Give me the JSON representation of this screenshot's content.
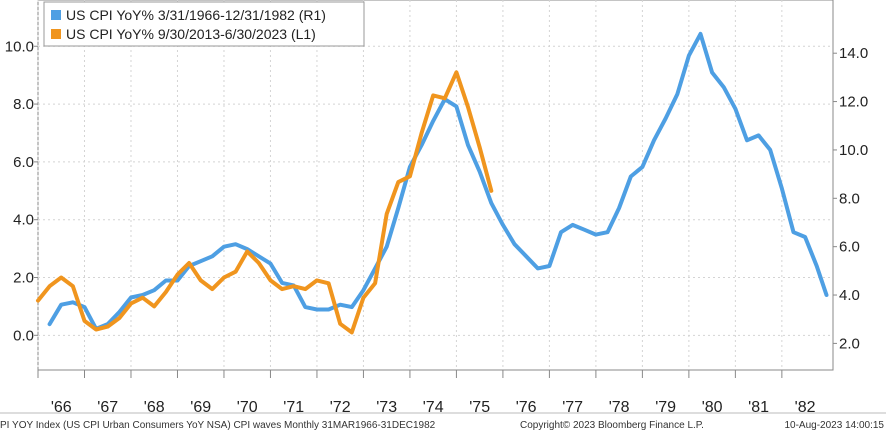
{
  "footer": {
    "left": "PI YOY Index (US CPI Urban Consumers YoY NSA) CPI waves  Monthly 31MAR1966-31DEC1982",
    "middle": "Copyright© 2023 Bloomberg Finance L.P.",
    "right": "10-Aug-2023 14:00:15"
  },
  "chart_data": {
    "type": "line",
    "title": "",
    "xlabel": "",
    "left_axis": {
      "label": "L1",
      "ylim": [
        -1.2,
        11.6
      ],
      "ticks": [
        "0.0",
        "2.0",
        "4.0",
        "6.0",
        "8.0",
        "10.0"
      ]
    },
    "right_axis": {
      "label": "R1",
      "ylim": [
        0.9,
        16.2
      ],
      "ticks": [
        "2.0",
        "4.0",
        "6.0",
        "8.0",
        "10.0",
        "12.0",
        "14.0"
      ]
    },
    "x_axis": {
      "range": [
        1966.0,
        1983.1
      ],
      "tick_labels": [
        "'66",
        "'67",
        "'68",
        "'69",
        "'70",
        "'71",
        "'72",
        "'73",
        "'74",
        "'75",
        "'76",
        "'77",
        "'78",
        "'79",
        "'80",
        "'81",
        "'82"
      ]
    },
    "grid": true,
    "legend": "top-left",
    "series": [
      {
        "name": "US CPI YoY% 3/31/1966-12/31/1982 (R1)",
        "axis": "right",
        "color": "#4e9fe3",
        "x": [
          1966.25,
          1966.5,
          1966.75,
          1967.0,
          1967.25,
          1967.5,
          1967.75,
          1968.0,
          1968.25,
          1968.5,
          1968.75,
          1969.0,
          1969.25,
          1969.5,
          1969.75,
          1970.0,
          1970.25,
          1970.5,
          1970.75,
          1971.0,
          1971.25,
          1971.5,
          1971.75,
          1972.0,
          1972.25,
          1972.5,
          1972.75,
          1973.0,
          1973.25,
          1973.5,
          1973.75,
          1974.0,
          1974.25,
          1974.5,
          1974.75,
          1975.0,
          1975.25,
          1975.5,
          1975.75,
          1976.0,
          1976.25,
          1976.5,
          1976.75,
          1977.0,
          1977.25,
          1977.5,
          1977.75,
          1978.0,
          1978.25,
          1978.5,
          1978.75,
          1979.0,
          1979.25,
          1979.5,
          1979.75,
          1980.0,
          1980.25,
          1980.5,
          1980.75,
          1981.0,
          1981.25,
          1981.5,
          1981.75,
          1982.0,
          1982.25,
          1982.5,
          1982.75,
          1982.96
        ],
        "y": [
          2.8,
          3.6,
          3.7,
          3.5,
          2.6,
          2.8,
          3.3,
          3.9,
          4.0,
          4.2,
          4.6,
          4.6,
          5.2,
          5.4,
          5.6,
          6.0,
          6.1,
          5.9,
          5.6,
          5.3,
          4.5,
          4.4,
          3.5,
          3.4,
          3.4,
          3.6,
          3.5,
          4.2,
          5.1,
          6.0,
          7.6,
          9.3,
          10.2,
          11.2,
          12.1,
          11.8,
          10.2,
          9.1,
          7.8,
          6.9,
          6.1,
          5.6,
          5.1,
          5.2,
          6.6,
          6.9,
          6.7,
          6.5,
          6.6,
          7.6,
          8.9,
          9.3,
          10.4,
          11.3,
          12.3,
          13.9,
          14.8,
          13.2,
          12.6,
          11.7,
          10.4,
          10.6,
          10.0,
          8.4,
          6.6,
          6.4,
          5.2,
          4.0
        ]
      },
      {
        "name": "US CPI YoY% 9/30/2013-6/30/2023 (L1)",
        "axis": "left",
        "color": "#f0951e",
        "x": [
          1966.0,
          1966.25,
          1966.5,
          1966.75,
          1967.0,
          1967.25,
          1967.5,
          1967.75,
          1968.0,
          1968.25,
          1968.5,
          1968.75,
          1969.0,
          1969.25,
          1969.5,
          1969.75,
          1970.0,
          1970.25,
          1970.5,
          1970.75,
          1971.0,
          1971.25,
          1971.5,
          1971.75,
          1972.0,
          1972.25,
          1972.5,
          1972.75,
          1973.0,
          1973.25,
          1973.5,
          1973.75,
          1974.0,
          1974.25,
          1974.5,
          1974.75,
          1975.0,
          1975.25,
          1975.5,
          1975.75
        ],
        "y": [
          1.2,
          1.7,
          2.0,
          1.7,
          0.5,
          0.2,
          0.3,
          0.6,
          1.1,
          1.3,
          1.0,
          1.5,
          2.1,
          2.5,
          1.9,
          1.6,
          2.0,
          2.2,
          2.9,
          2.5,
          1.9,
          1.6,
          1.7,
          1.6,
          1.9,
          1.8,
          0.4,
          0.1,
          1.3,
          1.8,
          4.2,
          5.3,
          5.5,
          7.0,
          8.3,
          8.2,
          9.1,
          7.9,
          6.5,
          5.0
        ]
      }
    ]
  }
}
